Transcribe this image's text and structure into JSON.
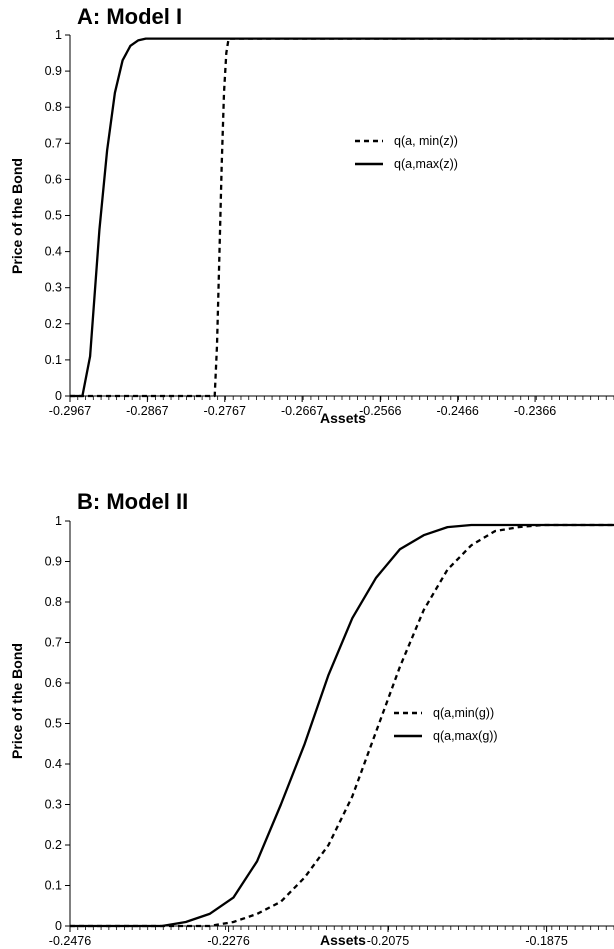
{
  "chart_data": [
    {
      "type": "line",
      "title": "A: Model I",
      "xlabel": "Assets",
      "ylabel": "Price of the Bond",
      "xlim": [
        -0.2967,
        -0.2264
      ],
      "ylim": [
        0,
        1
      ],
      "x_ticks": [
        "-0.2967",
        "-0.2867",
        "-0.2767",
        "-0.2667",
        "-0.2566",
        "-0.2466",
        "-0.2366"
      ],
      "y_ticks": [
        "0",
        "0.1",
        "0.2",
        "0.3",
        "0.4",
        "0.5",
        "0.6",
        "0.7",
        "0.8",
        "0.9",
        "1"
      ],
      "legend_position": "right-middle",
      "grid": false,
      "series": [
        {
          "name": "q(a, min(z))",
          "style": "dashed",
          "x": [
            -0.2967,
            -0.278,
            -0.2777,
            -0.2774,
            -0.2771,
            -0.2768,
            -0.2765,
            -0.2762,
            -0.2264
          ],
          "y": [
            0,
            0,
            0.14,
            0.38,
            0.64,
            0.84,
            0.95,
            0.99,
            0.99
          ]
        },
        {
          "name": "q(a,max(z))",
          "style": "solid",
          "x": [
            -0.2967,
            -0.2951,
            -0.2941,
            -0.2929,
            -0.2919,
            -0.2909,
            -0.2899,
            -0.2889,
            -0.2879,
            -0.2869,
            -0.2849,
            -0.2264
          ],
          "y": [
            0,
            0,
            0.11,
            0.46,
            0.68,
            0.84,
            0.93,
            0.97,
            0.985,
            0.99,
            0.99,
            0.99
          ]
        }
      ]
    },
    {
      "type": "line",
      "title": "B: Model II",
      "xlabel": "Assets",
      "ylabel": "Price of the Bond",
      "xlim": [
        -0.2476,
        -0.179
      ],
      "ylim": [
        0,
        1
      ],
      "x_ticks": [
        "-0.2476",
        "-0.2276",
        "-0.2075",
        "-0.1875"
      ],
      "y_ticks": [
        "0",
        "0.1",
        "0.2",
        "0.3",
        "0.4",
        "0.5",
        "0.6",
        "0.7",
        "0.8",
        "0.9",
        "1"
      ],
      "legend_position": "right-middle",
      "grid": false,
      "series": [
        {
          "name": "q(a,min(g))",
          "style": "dashed",
          "x": [
            -0.2476,
            -0.23,
            -0.227,
            -0.224,
            -0.221,
            -0.218,
            -0.215,
            -0.212,
            -0.209,
            -0.206,
            -0.203,
            -0.2,
            -0.197,
            -0.194,
            -0.191,
            -0.188,
            -0.179
          ],
          "y": [
            0,
            0,
            0.01,
            0.03,
            0.06,
            0.12,
            0.2,
            0.32,
            0.48,
            0.64,
            0.78,
            0.88,
            0.94,
            0.975,
            0.985,
            0.99,
            0.99
          ]
        },
        {
          "name": "q(a,max(g))",
          "style": "solid",
          "x": [
            -0.2476,
            -0.236,
            -0.233,
            -0.23,
            -0.227,
            -0.224,
            -0.221,
            -0.218,
            -0.215,
            -0.212,
            -0.209,
            -0.206,
            -0.203,
            -0.2,
            -0.197,
            -0.194,
            -0.191,
            -0.179
          ],
          "y": [
            0,
            0,
            0.01,
            0.03,
            0.07,
            0.16,
            0.3,
            0.45,
            0.62,
            0.76,
            0.86,
            0.93,
            0.965,
            0.985,
            0.99,
            0.99,
            0.99,
            0.99
          ]
        }
      ]
    }
  ]
}
